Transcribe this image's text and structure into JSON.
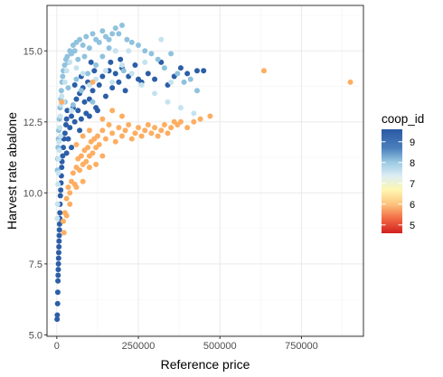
{
  "chart_data": {
    "type": "scatter",
    "title": "",
    "xlabel": "Reference price",
    "ylabel": "Harvest rate abalone",
    "xlim": [
      -30000,
      940000
    ],
    "ylim": [
      4.95,
      16.6
    ],
    "x_ticks": [
      0,
      250000,
      500000,
      750000
    ],
    "x_tick_labels": [
      "0",
      "250000",
      "500000",
      "750000"
    ],
    "y_ticks": [
      5.0,
      7.5,
      10.0,
      12.5,
      15.0
    ],
    "y_tick_labels": [
      "5.0",
      "7.5",
      "10.0",
      "12.5",
      "15.0"
    ],
    "grid": true,
    "legend": {
      "title": "coop_id",
      "position": "right",
      "range": [
        4.6,
        9.6
      ],
      "breaks": [
        5,
        6,
        7,
        8,
        9
      ],
      "break_labels": [
        "5",
        "6",
        "7",
        "8",
        "9"
      ]
    },
    "colors": {
      "coop_9_5": "#2c5ea8",
      "coop_8_5": "#8fc2de",
      "coop_8": "#c5e3ef",
      "coop_6": "#fdae61",
      "panel_border": "#333333",
      "grid_major": "#ebebeb"
    },
    "series": [
      {
        "coop_id": 9.5,
        "points": [
          [
            900,
            5.55
          ],
          [
            1500,
            5.7
          ],
          [
            2500,
            6.1
          ],
          [
            3000,
            6.5
          ],
          [
            3500,
            6.9
          ],
          [
            4000,
            7.1
          ],
          [
            4500,
            7.3
          ],
          [
            5000,
            7.5
          ],
          [
            5500,
            7.7
          ],
          [
            6000,
            7.9
          ],
          [
            6500,
            8.1
          ],
          [
            7000,
            8.3
          ],
          [
            7500,
            8.5
          ],
          [
            8000,
            8.7
          ],
          [
            8500,
            8.9
          ],
          [
            9000,
            9.1
          ],
          [
            9500,
            9.3
          ],
          [
            10000,
            9.6
          ],
          [
            11000,
            9.9
          ],
          [
            12000,
            10.1
          ],
          [
            13000,
            10.35
          ],
          [
            14000,
            10.6
          ],
          [
            15000,
            10.9
          ],
          [
            16000,
            11.1
          ],
          [
            18000,
            11.3
          ],
          [
            20000,
            11.6
          ],
          [
            22000,
            11.9
          ],
          [
            25000,
            12.1
          ],
          [
            28000,
            12.4
          ],
          [
            30000,
            12.6
          ],
          [
            32000,
            12.9
          ],
          [
            35000,
            11.9
          ],
          [
            40000,
            12.3
          ],
          [
            45000,
            12.7
          ],
          [
            50000,
            13.0
          ],
          [
            55000,
            12.5
          ],
          [
            60000,
            13.3
          ],
          [
            65000,
            12.9
          ],
          [
            70000,
            13.5
          ],
          [
            75000,
            12.6
          ],
          [
            80000,
            13.7
          ],
          [
            85000,
            13.2
          ],
          [
            90000,
            12.8
          ],
          [
            95000,
            13.9
          ],
          [
            100000,
            13.3
          ],
          [
            110000,
            13.6
          ],
          [
            115000,
            14.3
          ],
          [
            120000,
            13.0
          ],
          [
            130000,
            13.8
          ],
          [
            140000,
            14.1
          ],
          [
            150000,
            13.4
          ],
          [
            160000,
            14.3
          ],
          [
            170000,
            13.7
          ],
          [
            180000,
            14.2
          ],
          [
            190000,
            13.9
          ],
          [
            200000,
            14.4
          ],
          [
            210000,
            13.6
          ],
          [
            220000,
            14.1
          ],
          [
            240000,
            14.5
          ],
          [
            260000,
            13.9
          ],
          [
            280000,
            14.2
          ],
          [
            300000,
            14.0
          ],
          [
            320000,
            14.6
          ],
          [
            340000,
            13.8
          ],
          [
            360000,
            14.1
          ],
          [
            380000,
            14.4
          ],
          [
            400000,
            14.2
          ],
          [
            430000,
            14.3
          ],
          [
            450000,
            14.3
          ],
          [
            100000,
            12.7
          ],
          [
            70000,
            12.2
          ],
          [
            45000,
            11.6
          ],
          [
            125000,
            12.9
          ],
          [
            75000,
            14.1
          ],
          [
            55000,
            13.8
          ],
          [
            105000,
            14.6
          ],
          [
            165000,
            14.6
          ],
          [
            195000,
            14.7
          ],
          [
            250000,
            14.0
          ],
          [
            30000,
            11.4
          ]
        ]
      },
      {
        "coop_id": 8.5,
        "points": [
          [
            2000,
            10.8
          ],
          [
            3000,
            11.2
          ],
          [
            4000,
            11.6
          ],
          [
            5000,
            11.9
          ],
          [
            6000,
            12.2
          ],
          [
            8000,
            12.6
          ],
          [
            10000,
            13.0
          ],
          [
            12000,
            13.3
          ],
          [
            14000,
            13.6
          ],
          [
            16000,
            13.9
          ],
          [
            18000,
            14.1
          ],
          [
            20000,
            14.3
          ],
          [
            24000,
            14.5
          ],
          [
            28000,
            14.7
          ],
          [
            32000,
            14.8
          ],
          [
            36000,
            14.6
          ],
          [
            40000,
            15.0
          ],
          [
            45000,
            14.9
          ],
          [
            50000,
            15.2
          ],
          [
            55000,
            15.0
          ],
          [
            60000,
            15.3
          ],
          [
            65000,
            14.7
          ],
          [
            70000,
            15.4
          ],
          [
            80000,
            15.2
          ],
          [
            90000,
            15.5
          ],
          [
            100000,
            15.1
          ],
          [
            110000,
            15.6
          ],
          [
            120000,
            15.4
          ],
          [
            130000,
            15.3
          ],
          [
            140000,
            15.7
          ],
          [
            150000,
            15.5
          ],
          [
            160000,
            15.4
          ],
          [
            170000,
            15.6
          ],
          [
            180000,
            15.8
          ],
          [
            190000,
            15.6
          ],
          [
            200000,
            15.9
          ],
          [
            215000,
            15.4
          ],
          [
            230000,
            15.3
          ],
          [
            250000,
            15.2
          ],
          [
            270000,
            15.0
          ],
          [
            290000,
            14.9
          ],
          [
            310000,
            14.7
          ],
          [
            330000,
            14.4
          ],
          [
            350000,
            14.9
          ],
          [
            370000,
            14.2
          ],
          [
            390000,
            13.9
          ],
          [
            410000,
            14.0
          ],
          [
            430000,
            13.6
          ],
          [
            95000,
            14.2
          ],
          [
            120000,
            14.5
          ],
          [
            60000,
            14.0
          ],
          [
            75000,
            13.6
          ],
          [
            140000,
            14.8
          ],
          [
            110000,
            13.2
          ],
          [
            50000,
            13.1
          ],
          [
            205000,
            14.3
          ],
          [
            160000,
            15.1
          ],
          [
            25000,
            13.2
          ],
          [
            35000,
            13.7
          ],
          [
            85000,
            14.8
          ]
        ]
      },
      {
        "coop_id": 8.0,
        "points": [
          [
            1500,
            9.1
          ],
          [
            2500,
            9.6
          ],
          [
            3500,
            10.3
          ],
          [
            4500,
            10.7
          ],
          [
            5500,
            11.2
          ],
          [
            7000,
            11.8
          ],
          [
            9000,
            12.3
          ],
          [
            11000,
            12.7
          ],
          [
            13000,
            13.1
          ],
          [
            15000,
            13.4
          ],
          [
            20000,
            13.2
          ],
          [
            25000,
            13.9
          ],
          [
            30000,
            14.3
          ],
          [
            40000,
            14.6
          ],
          [
            60000,
            14.4
          ],
          [
            80000,
            14.2
          ],
          [
            100000,
            13.8
          ],
          [
            120000,
            14.0
          ],
          [
            150000,
            14.3
          ],
          [
            170000,
            13.9
          ],
          [
            200000,
            14.5
          ],
          [
            230000,
            14.2
          ],
          [
            260000,
            13.8
          ],
          [
            300000,
            13.5
          ],
          [
            340000,
            13.2
          ],
          [
            380000,
            13.0
          ],
          [
            420000,
            12.8
          ],
          [
            180000,
            15.0
          ],
          [
            220000,
            15.0
          ],
          [
            320000,
            15.4
          ],
          [
            350000,
            13.9
          ],
          [
            270000,
            14.6
          ],
          [
            8000,
            11.5
          ],
          [
            12000,
            12.0
          ],
          [
            45000,
            12.9
          ]
        ]
      },
      {
        "coop_id": 6.0,
        "points": [
          [
            15000,
            13.2
          ],
          [
            20000,
            9.0
          ],
          [
            25000,
            9.3
          ],
          [
            30000,
            9.8
          ],
          [
            35000,
            10.2
          ],
          [
            40000,
            10.0
          ],
          [
            45000,
            10.4
          ],
          [
            50000,
            10.7
          ],
          [
            55000,
            10.3
          ],
          [
            60000,
            10.9
          ],
          [
            65000,
            11.2
          ],
          [
            70000,
            10.8
          ],
          [
            75000,
            11.3
          ],
          [
            80000,
            11.0
          ],
          [
            85000,
            11.5
          ],
          [
            90000,
            11.1
          ],
          [
            95000,
            11.6
          ],
          [
            100000,
            11.3
          ],
          [
            105000,
            11.8
          ],
          [
            110000,
            11.4
          ],
          [
            115000,
            11.9
          ],
          [
            120000,
            11.6
          ],
          [
            125000,
            12.0
          ],
          [
            130000,
            11.7
          ],
          [
            140000,
            12.2
          ],
          [
            150000,
            11.9
          ],
          [
            160000,
            12.4
          ],
          [
            170000,
            12.1
          ],
          [
            180000,
            11.8
          ],
          [
            190000,
            12.3
          ],
          [
            200000,
            12.0
          ],
          [
            210000,
            12.2
          ],
          [
            220000,
            12.4
          ],
          [
            230000,
            11.9
          ],
          [
            240000,
            12.1
          ],
          [
            250000,
            12.3
          ],
          [
            260000,
            12.0
          ],
          [
            270000,
            12.2
          ],
          [
            280000,
            12.4
          ],
          [
            290000,
            12.1
          ],
          [
            300000,
            12.3
          ],
          [
            310000,
            12.0
          ],
          [
            320000,
            12.2
          ],
          [
            330000,
            12.4
          ],
          [
            340000,
            12.1
          ],
          [
            350000,
            12.3
          ],
          [
            360000,
            12.5
          ],
          [
            370000,
            12.4
          ],
          [
            380000,
            12.5
          ],
          [
            400000,
            12.3
          ],
          [
            420000,
            12.5
          ],
          [
            440000,
            12.6
          ],
          [
            470000,
            12.7
          ],
          [
            30000,
            9.2
          ],
          [
            40000,
            9.6
          ],
          [
            60000,
            10.2
          ],
          [
            80000,
            10.4
          ],
          [
            100000,
            10.9
          ],
          [
            120000,
            11.0
          ],
          [
            140000,
            11.3
          ],
          [
            60000,
            11.7
          ],
          [
            80000,
            12.0
          ],
          [
            100000,
            12.2
          ],
          [
            140000,
            12.6
          ],
          [
            170000,
            12.9
          ],
          [
            200000,
            12.7
          ],
          [
            110000,
            13.9
          ],
          [
            635000,
            14.3
          ],
          [
            900000,
            13.9
          ],
          [
            22000,
            8.6
          ]
        ]
      }
    ]
  }
}
